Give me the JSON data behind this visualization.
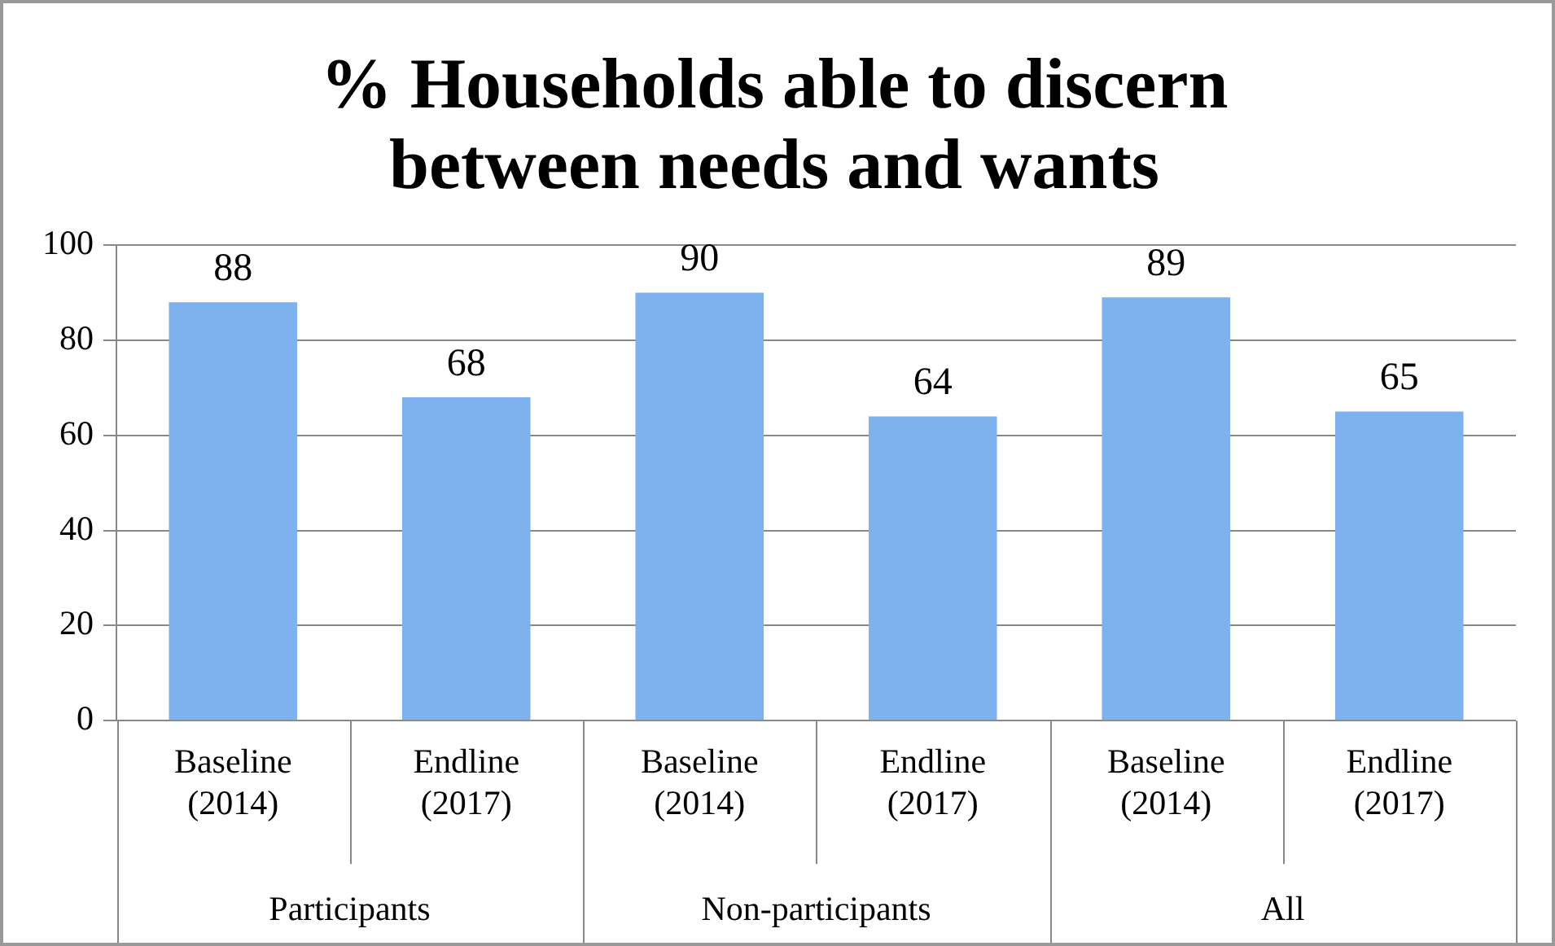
{
  "chart_data": {
    "type": "bar",
    "title": "% Households able to discern between needs and wants",
    "categories": [
      "Baseline (2014)",
      "Endline (2017)",
      "Baseline (2014)",
      "Endline (2017)",
      "Baseline (2014)",
      "Endline (2017)"
    ],
    "values": [
      88,
      68,
      90,
      64,
      89,
      65
    ],
    "color": "#7eb2ee",
    "ylim": [
      0,
      100
    ],
    "yticks": [
      0,
      20,
      40,
      60,
      80,
      100
    ],
    "grid": "y",
    "data_labels": true,
    "legend": false,
    "annotations": [
      "Participants",
      "Non-participants",
      "All"
    ]
  }
}
